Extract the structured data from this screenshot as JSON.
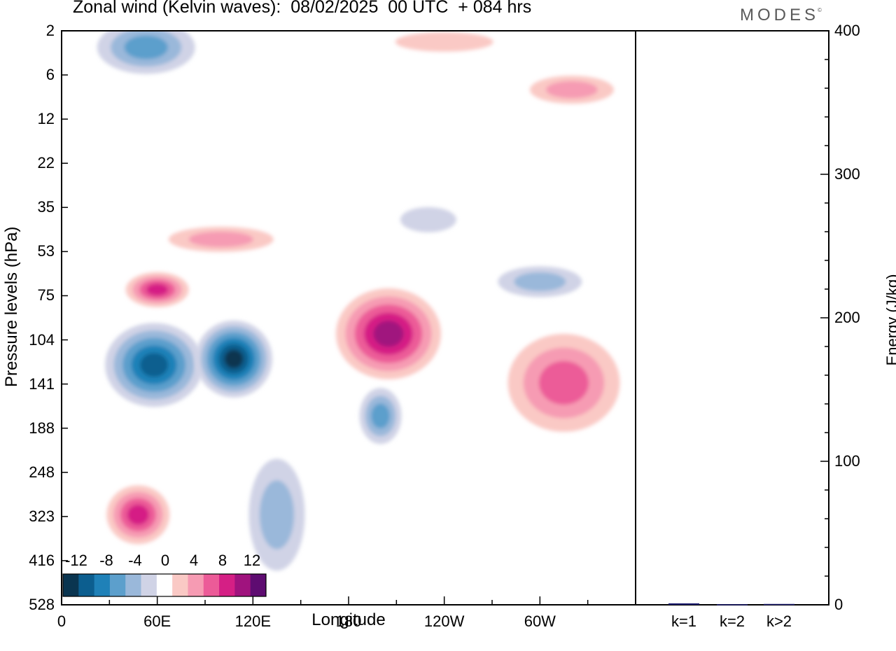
{
  "title": "Zonal wind (Kelvin waves):  08/02/2025  00 UTC  + 084 hrs",
  "brand": "MODES",
  "brand_mark": "©",
  "chart_data": [
    {
      "type": "heatmap",
      "title": "Zonal wind (Kelvin waves):  08/02/2025  00 UTC  + 084 hrs",
      "xlabel": "Longitude",
      "ylabel": "Pressure levels (hPa)",
      "x_ticks": [
        "0",
        "60E",
        "120E",
        "180",
        "120W",
        "60W"
      ],
      "x_tick_values": [
        0,
        60,
        120,
        180,
        240,
        300
      ],
      "xlim": [
        0,
        360
      ],
      "y_ticks": [
        "2",
        "6",
        "12",
        "22",
        "35",
        "53",
        "75",
        "104",
        "141",
        "188",
        "248",
        "323",
        "416",
        "528"
      ],
      "colorbar": {
        "labels": [
          "-12",
          "-8",
          "-4",
          "0",
          "4",
          "8",
          "12"
        ],
        "levels": [
          -14,
          -12,
          -10,
          -8,
          -6,
          -4,
          -2,
          2,
          4,
          6,
          8,
          10,
          12,
          14
        ],
        "colors": [
          "#0a3550",
          "#0c5e8f",
          "#1f81b8",
          "#5c9fcc",
          "#9ab8da",
          "#d0d3e6",
          "#ffffff",
          "#fac9c5",
          "#f69bb3",
          "#ec5b98",
          "#d51f85",
          "#a0137e",
          "#5e0c71"
        ]
      },
      "blobs": [
        {
          "lon": 58,
          "p": 125,
          "value": -10
        },
        {
          "lon": 108,
          "p": 120,
          "value": -12
        },
        {
          "lon": 53,
          "p": 3.5,
          "value": -5
        },
        {
          "lon": 200,
          "p": 175,
          "value": -6
        },
        {
          "lon": 135,
          "p": 320,
          "value": -3
        },
        {
          "lon": 300,
          "p": 68,
          "value": -3
        },
        {
          "lon": 230,
          "p": 40,
          "value": -2
        },
        {
          "lon": 205,
          "p": 100,
          "value": 9
        },
        {
          "lon": 315,
          "p": 140,
          "value": 6
        },
        {
          "lon": 48,
          "p": 320,
          "value": 7
        },
        {
          "lon": 60,
          "p": 72,
          "value": 7
        },
        {
          "lon": 100,
          "p": 48,
          "value": 4
        },
        {
          "lon": 320,
          "p": 8,
          "value": 3
        },
        {
          "lon": 240,
          "p": 3,
          "value": 2
        }
      ]
    },
    {
      "type": "bar",
      "ylabel": "Energy (J/kg)",
      "categories": [
        "k=1",
        "k=2",
        "k>2"
      ],
      "values": [
        1,
        0.4,
        0.6
      ],
      "ylim": [
        0,
        400
      ],
      "y_ticks": [
        "0",
        "100",
        "200",
        "300",
        "400"
      ],
      "y_tick_values": [
        0,
        100,
        200,
        300,
        400
      ]
    }
  ]
}
